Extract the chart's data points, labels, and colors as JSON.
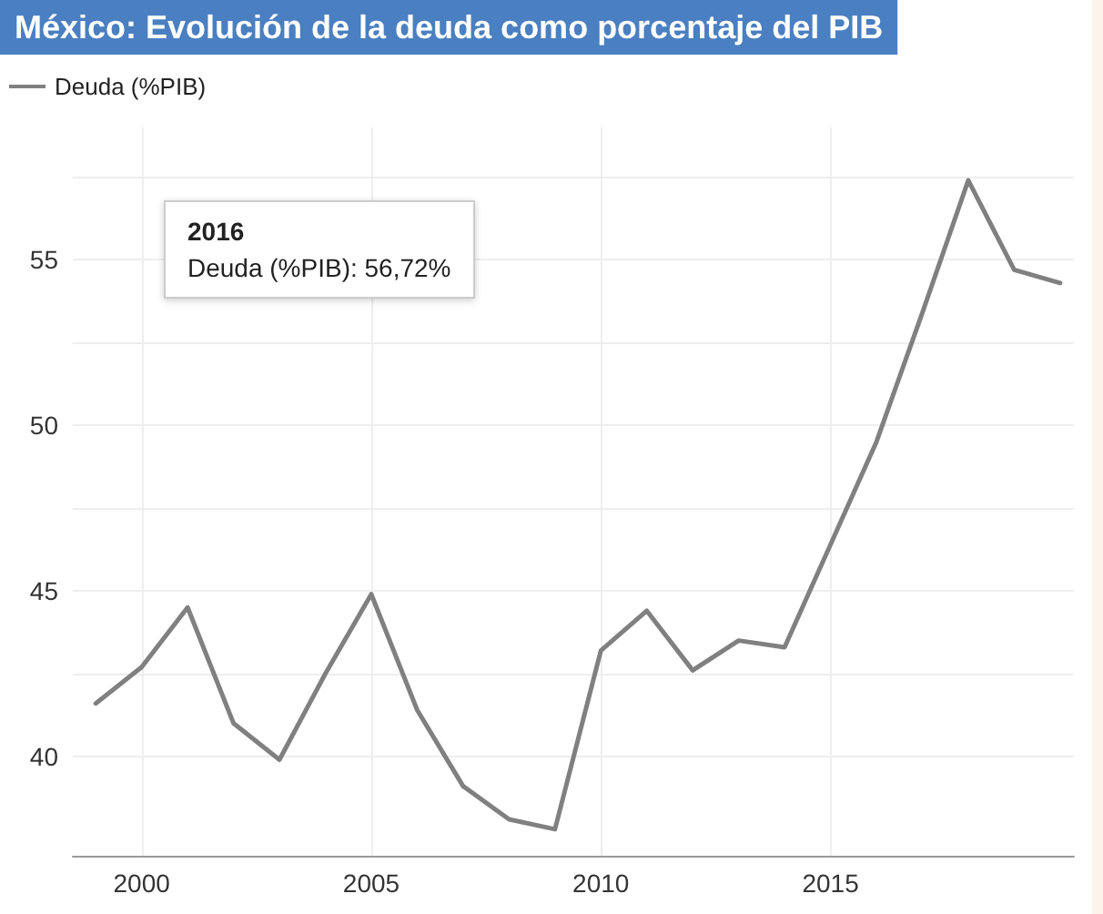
{
  "chart_data": {
    "type": "line",
    "title": "México: Evolución de la deuda como porcentaje del PIB",
    "x": [
      1999,
      2000,
      2001,
      2002,
      2003,
      2004,
      2005,
      2006,
      2007,
      2008,
      2009,
      2010,
      2011,
      2012,
      2013,
      2014,
      2015,
      2016,
      2017,
      2018,
      2019,
      2020
    ],
    "series": [
      {
        "name": "Deuda (%PIB)",
        "color": "#808080",
        "values": [
          41.6,
          42.7,
          44.5,
          41.0,
          39.9,
          42.5,
          44.9,
          41.4,
          39.1,
          38.1,
          37.8,
          43.2,
          44.4,
          42.6,
          43.5,
          43.3,
          46.4,
          49.5,
          53.4,
          57.4,
          54.7,
          54.3
        ]
      }
    ],
    "xlim": [
      1998.5,
      2020.3
    ],
    "xticks": [
      2000,
      2005,
      2010,
      2015
    ],
    "ylim": [
      37,
      59
    ],
    "yticks": [
      40,
      {
        "value": 42.5,
        "label": null
      },
      45,
      {
        "value": 47.5,
        "label": null
      },
      50,
      {
        "value": 52.5,
        "label": null
      },
      55,
      {
        "value": 57.5,
        "label": null
      }
    ],
    "grid": true,
    "legend": "top left",
    "marker": "none",
    "line_style": "solid",
    "annotations": [
      "2016",
      "Deuda (%PIB): 56,72%"
    ]
  }
}
